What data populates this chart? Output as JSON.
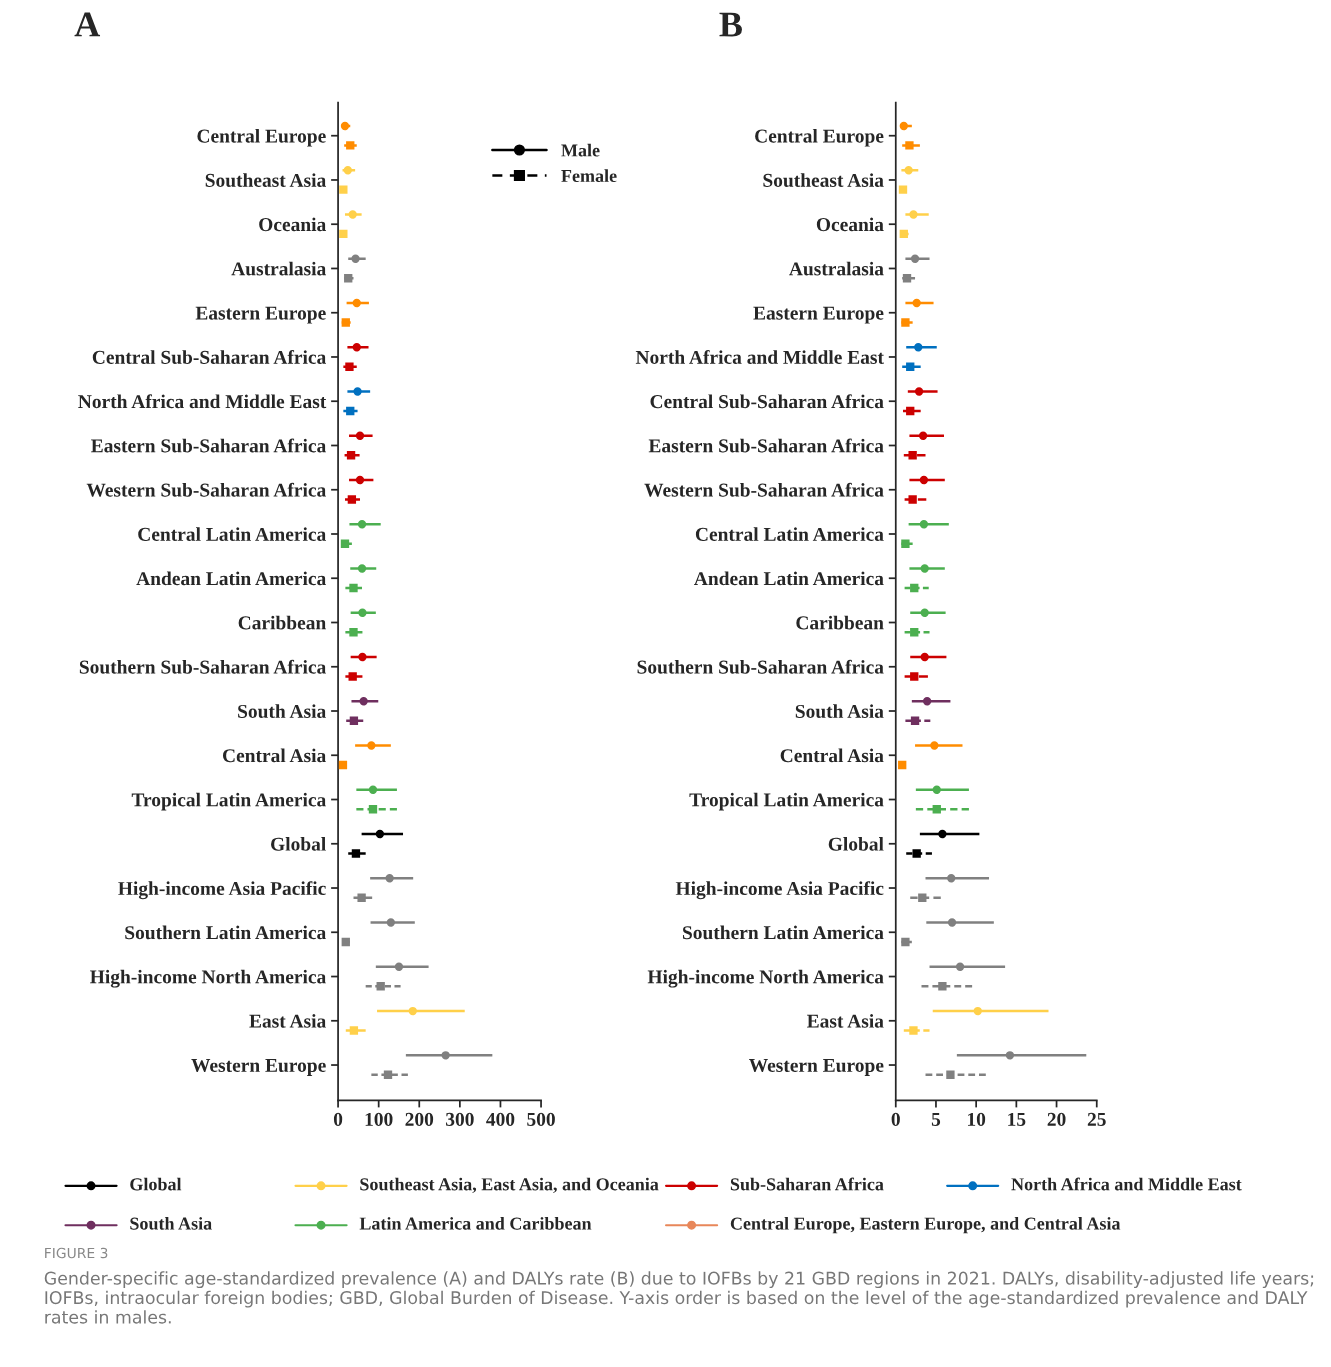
{
  "chart_data": [
    {
      "type": "scatter",
      "title": "A",
      "categories": [
        "Central Europe",
        "Southeast Asia",
        "Oceania",
        "Australasia",
        "Eastern Europe",
        "Central Sub-Saharan Africa",
        "North Africa and Middle East",
        "Eastern Sub-Saharan Africa",
        "Western Sub-Saharan Africa",
        "Central Latin America",
        "Andean Latin America",
        "Caribbean",
        "Southern Sub-Saharan Africa",
        "South Asia",
        "Central Asia",
        "Tropical Latin America",
        "Global",
        "High-income Asia Pacific",
        "Southern Latin America",
        "High-income North America",
        "East Asia",
        "Western Europe"
      ],
      "orientation": "horizontal",
      "xlim": [
        0,
        500
      ],
      "xticks": [
        0,
        100,
        200,
        300,
        400,
        500
      ],
      "legend": "top right",
      "grid": false,
      "series": [
        {
          "name": "Male",
          "color": "#000000",
          "marker": "circle",
          "line_style": "solid",
          "colors": [
            "#ff8c00",
            "#ffd04a",
            "#ffd04a",
            "#808080",
            "#ff8c00",
            "#cc0000",
            "#0070c0",
            "#cc0000",
            "#cc0000",
            "#4caf50",
            "#4caf50",
            "#4caf50",
            "#cc0000",
            "#6f2f5f",
            "#ff8c00",
            "#4caf50",
            "#000000",
            "#808080",
            "#808080",
            "#808080",
            "#ffd04a",
            "#808080"
          ],
          "values": [
            17,
            24,
            36,
            43,
            46,
            46,
            48,
            54,
            54,
            59,
            59,
            60,
            60,
            63,
            82,
            86,
            103,
            127,
            130,
            150,
            184,
            265
          ],
          "errors": [
            [
              9,
              30
            ],
            [
              11,
              42
            ],
            [
              17,
              58
            ],
            [
              25,
              68
            ],
            [
              21,
              76
            ],
            [
              23,
              75
            ],
            [
              23,
              79
            ],
            [
              27,
              85
            ],
            [
              27,
              87
            ],
            [
              28,
              105
            ],
            [
              30,
              94
            ],
            [
              31,
              93
            ],
            [
              31,
              95
            ],
            [
              33,
              99
            ],
            [
              42,
              130
            ],
            [
              45,
              145
            ],
            [
              58,
              160
            ],
            [
              79,
              185
            ],
            [
              80,
              189
            ],
            [
              93,
              223
            ],
            [
              96,
              312
            ],
            [
              167,
              380
            ]
          ]
        },
        {
          "name": "Female",
          "color": "#000000",
          "marker": "square",
          "line_style": "dashed",
          "colors": [
            "#ff8c00",
            "#ffd04a",
            "#ffd04a",
            "#808080",
            "#ff8c00",
            "#cc0000",
            "#0070c0",
            "#cc0000",
            "#cc0000",
            "#4caf50",
            "#4caf50",
            "#4caf50",
            "#cc0000",
            "#6f2f5f",
            "#ff8c00",
            "#4caf50",
            "#000000",
            "#808080",
            "#808080",
            "#808080",
            "#ffd04a",
            "#808080"
          ],
          "values": [
            30,
            13,
            13,
            25,
            19,
            28,
            30,
            32,
            34,
            17,
            38,
            38,
            36,
            39,
            12,
            86,
            44,
            58,
            19,
            105,
            39,
            123
          ],
          "errors": [
            [
              15,
              46
            ],
            null,
            null,
            [
              15,
              38
            ],
            [
              9,
              31
            ],
            [
              13,
              46
            ],
            [
              13,
              48
            ],
            [
              16,
              53
            ],
            [
              17,
              54
            ],
            [
              9,
              34
            ],
            [
              18,
              59
            ],
            [
              18,
              60
            ],
            [
              18,
              60
            ],
            [
              20,
              62
            ],
            null,
            [
              45,
              145
            ],
            [
              25,
              68
            ],
            [
              38,
              84
            ],
            [
              12,
              29
            ],
            [
              68,
              154
            ],
            [
              19,
              68
            ],
            [
              82,
              172
            ]
          ]
        }
      ]
    },
    {
      "type": "scatter",
      "title": "B",
      "categories": [
        "Central Europe",
        "Southeast Asia",
        "Oceania",
        "Australasia",
        "Eastern Europe",
        "North Africa and Middle East",
        "Central Sub-Saharan Africa",
        "Eastern Sub-Saharan Africa",
        "Western Sub-Saharan Africa",
        "Central Latin America",
        "Andean Latin America",
        "Caribbean",
        "Southern Sub-Saharan Africa",
        "South Asia",
        "Central Asia",
        "Tropical Latin America",
        "Global",
        "High-income Asia Pacific",
        "Southern Latin America",
        "High-income North America",
        "East Asia",
        "Western Europe"
      ],
      "orientation": "horizontal",
      "xlim": [
        0,
        25
      ],
      "xticks": [
        0,
        5,
        10,
        15,
        20,
        25
      ],
      "grid": false,
      "series": [
        {
          "marker": "circle",
          "line_style": "solid",
          "colors": [
            "#ff8c00",
            "#ffd04a",
            "#ffd04a",
            "#808080",
            "#ff8c00",
            "#0070c0",
            "#cc0000",
            "#cc0000",
            "#cc0000",
            "#4caf50",
            "#4caf50",
            "#4caf50",
            "#cc0000",
            "#6f2f5f",
            "#ff8c00",
            "#4caf50",
            "#000000",
            "#808080",
            "#808080",
            "#808080",
            "#ffd04a",
            "#808080"
          ],
          "values": [
            1.0,
            1.6,
            2.2,
            2.4,
            2.6,
            2.8,
            2.9,
            3.4,
            3.5,
            3.5,
            3.6,
            3.6,
            3.6,
            3.9,
            4.8,
            5.1,
            5.8,
            6.9,
            7.0,
            8.0,
            10.2,
            14.2
          ],
          "errors": [
            [
              1.0,
              2.0
            ],
            [
              0.7,
              2.8
            ],
            [
              1.2,
              4.1
            ],
            [
              1.2,
              4.2
            ],
            [
              1.2,
              4.7
            ],
            [
              1.3,
              5.1
            ],
            [
              1.5,
              5.2
            ],
            [
              1.7,
              6.0
            ],
            [
              1.7,
              6.1
            ],
            [
              1.6,
              6.6
            ],
            [
              1.7,
              6.1
            ],
            [
              1.8,
              6.2
            ],
            [
              1.8,
              6.3
            ],
            [
              2.0,
              6.8
            ],
            [
              2.4,
              8.3
            ],
            [
              2.5,
              9.1
            ],
            [
              3.0,
              10.4
            ],
            [
              3.7,
              11.6
            ],
            [
              3.8,
              12.2
            ],
            [
              4.2,
              13.6
            ],
            [
              4.6,
              19.0
            ],
            [
              7.6,
              23.7
            ]
          ]
        },
        {
          "marker": "square",
          "line_style": "dashed",
          "colors": [
            "#ff8c00",
            "#ffd04a",
            "#ffd04a",
            "#808080",
            "#ff8c00",
            "#0070c0",
            "#cc0000",
            "#cc0000",
            "#cc0000",
            "#4caf50",
            "#4caf50",
            "#4caf50",
            "#cc0000",
            "#6f2f5f",
            "#ff8c00",
            "#4caf50",
            "#000000",
            "#808080",
            "#808080",
            "#808080",
            "#ffd04a",
            "#808080"
          ],
          "values": [
            1.7,
            0.9,
            1.0,
            1.4,
            1.2,
            1.8,
            1.8,
            2.1,
            2.1,
            1.2,
            2.3,
            2.3,
            2.3,
            2.4,
            0.8,
            5.1,
            2.6,
            3.3,
            1.2,
            5.8,
            2.2,
            6.8
          ],
          "errors": [
            [
              0.8,
              3.0
            ],
            [
              0.9,
              1.4
            ],
            [
              1.0,
              1.6
            ],
            [
              0.8,
              2.4
            ],
            [
              0.7,
              2.1
            ],
            [
              0.8,
              3.1
            ],
            [
              0.9,
              3.1
            ],
            [
              1.0,
              3.7
            ],
            [
              1.1,
              3.8
            ],
            [
              0.7,
              2.1
            ],
            [
              1.1,
              4.1
            ],
            [
              1.1,
              4.2
            ],
            [
              1.1,
              4.0
            ],
            [
              1.2,
              4.3
            ],
            null,
            [
              2.5,
              9.1
            ],
            [
              1.3,
              4.5
            ],
            [
              1.8,
              5.6
            ],
            [
              0.7,
              2.0
            ],
            [
              3.2,
              9.5
            ],
            [
              1.0,
              4.2
            ],
            [
              3.7,
              11.2
            ]
          ]
        }
      ]
    },
    {
      "type": "other",
      "categories": [
        "Global",
        "Southeast Asia, East Asia, and Oceania",
        "Sub-Saharan Africa",
        "North Africa and Middle East",
        "South Asia",
        "Latin America and Caribbean",
        "Central Europe, Eastern Europe, and Central Asia"
      ],
      "colors": [
        "#000000",
        "#ffd04a",
        "#cc0000",
        "#0070c0",
        "#6f2f5f",
        "#4caf50",
        "#e8875a"
      ],
      "annotations": [
        "FIGURE 3",
        "Gender-specific age-standardized prevalence (A) and DALYs rate (B) due to IOFBs by 21 GBD regions in 2021. DALYs, disability-adjusted life years; IOFBs, intraocular foreign bodies; GBD, Global Burden of Disease. Y-axis order is based on the level of the age-standardized prevalence and DALY rates in males."
      ]
    }
  ]
}
